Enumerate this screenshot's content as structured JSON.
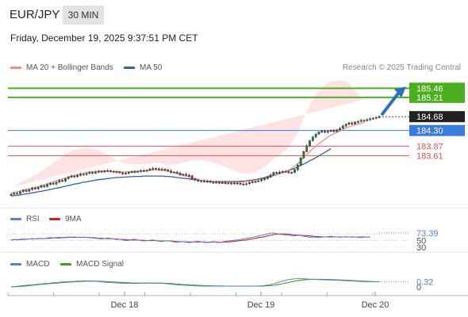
{
  "header": {
    "symbol": "EUR/JPY",
    "timeframe": "30 MIN",
    "timestamp": "Friday, December 19, 2025 9:37:51 PM CET"
  },
  "legend": {
    "ma20_label": "MA 20 + Bollinger Bands",
    "ma50_label": "MA 50",
    "credit": "Research © 2025 Trading Central"
  },
  "colors": {
    "up": "#2e7d32",
    "down": "#c62828",
    "ma20": "#f48a8a",
    "ma50": "#3a5fa0",
    "band": "#fcd9d9",
    "resistance": "#4caf1f",
    "pivot": "#3b7be0",
    "support": "#e05050",
    "arrow": "#2f6fb8",
    "rsi": "#5b7fd4",
    "rsi_ma": "#d32020",
    "macd": "#5b7fd4",
    "macd_signal": "#4a9e1a"
  },
  "chart_data": [
    {
      "type": "candlestick",
      "x_ticks": [
        "Dec 18",
        "Dec 19",
        "Dec 20"
      ],
      "ylim": [
        182.4,
        185.75
      ],
      "levels": [
        {
          "value": "185.46",
          "kind": "resistance"
        },
        {
          "value": "185.21",
          "kind": "resistance"
        },
        {
          "value": "184.68",
          "kind": "last"
        },
        {
          "value": "184.30",
          "kind": "pivot"
        },
        {
          "value": "183.87",
          "kind": "support"
        },
        {
          "value": "183.61",
          "kind": "support"
        }
      ],
      "close": [
        182.55,
        182.58,
        182.57,
        182.62,
        182.66,
        182.63,
        182.68,
        182.72,
        182.7,
        182.74,
        182.78,
        182.76,
        182.82,
        182.85,
        182.83,
        182.88,
        182.93,
        182.91,
        182.98,
        183.02,
        183.05,
        183.03,
        183.07,
        183.1,
        183.09,
        183.12,
        183.15,
        183.13,
        183.16,
        183.18,
        183.17,
        183.19,
        183.2,
        183.18,
        183.16,
        183.17,
        183.14,
        183.11,
        183.13,
        183.15,
        183.17,
        183.16,
        183.18,
        183.2,
        183.19,
        183.21,
        183.24,
        183.26,
        183.25,
        183.23,
        183.24,
        183.22,
        183.19,
        183.15,
        183.16,
        183.13,
        183.08,
        183.1,
        183.07,
        183.06,
        182.98,
        182.94,
        182.91,
        182.92,
        182.89,
        182.91,
        182.88,
        182.87,
        182.88,
        182.86,
        182.87,
        182.85,
        182.86,
        182.84,
        182.86,
        182.85,
        182.83,
        182.82,
        182.84,
        182.87,
        182.89,
        182.9,
        182.92,
        182.95,
        182.98,
        183.02,
        183.08,
        183.15,
        183.13,
        183.16,
        183.18,
        183.17,
        183.14,
        183.15,
        183.22,
        183.35,
        183.55,
        183.72,
        183.88,
        184.02,
        184.12,
        184.2,
        184.26,
        184.28,
        184.25,
        184.28,
        184.3,
        184.27,
        184.32,
        184.36,
        184.42,
        184.47,
        184.51,
        184.48,
        184.53,
        184.55,
        184.58,
        184.57,
        184.6,
        184.62,
        184.64,
        184.66,
        184.68
      ],
      "ma20": [
        182.58,
        182.6,
        182.62,
        182.64,
        182.66,
        182.68,
        182.7,
        182.72,
        182.74,
        182.76,
        182.79,
        182.81,
        182.84,
        182.86,
        182.89,
        182.92,
        182.94,
        182.97,
        183.0,
        183.02,
        183.05,
        183.07,
        183.09,
        183.11,
        183.13,
        183.15,
        183.16,
        183.17,
        183.18,
        183.18,
        183.19,
        183.19,
        183.18,
        183.18,
        183.17,
        183.17,
        183.16,
        183.16,
        183.16,
        183.17,
        183.17,
        183.18,
        183.18,
        183.19,
        183.19,
        183.2,
        183.2,
        183.21,
        183.21,
        183.21,
        183.2,
        183.19,
        183.18,
        183.16,
        183.14,
        183.12,
        183.1,
        183.07,
        183.05,
        183.02,
        182.99,
        182.97,
        182.95,
        182.93,
        182.92,
        182.91,
        182.9,
        182.89,
        182.89,
        182.88,
        182.88,
        182.88,
        182.88,
        182.88,
        182.88,
        182.88,
        182.88,
        182.89,
        182.9,
        182.91,
        182.92,
        182.93,
        182.95,
        182.96,
        182.98,
        183.0,
        183.03,
        183.06,
        183.08,
        183.11,
        183.14,
        183.17,
        183.21,
        183.26,
        183.32,
        183.39,
        183.47,
        183.56,
        183.64,
        183.72,
        183.8,
        183.87,
        183.94,
        184.0,
        184.06,
        184.12,
        184.17,
        184.21,
        184.25,
        184.29,
        184.33,
        184.37,
        184.4,
        184.43,
        184.46,
        184.48,
        184.5,
        184.52
      ],
      "ma50": [
        182.5,
        182.51,
        182.52,
        182.53,
        182.55,
        182.56,
        182.57,
        182.59,
        182.6,
        182.62,
        182.63,
        182.65,
        182.66,
        182.68,
        182.7,
        182.72,
        182.73,
        182.75,
        182.77,
        182.79,
        182.81,
        182.83,
        182.84,
        182.86,
        182.88,
        182.89,
        182.91,
        182.92,
        182.94,
        182.95,
        182.96,
        182.97,
        182.98,
        182.99,
        183.0,
        183.01,
        183.01,
        183.02,
        183.02,
        183.03,
        183.03,
        183.04,
        183.04,
        183.04,
        183.05,
        183.05,
        183.05,
        183.05,
        183.05,
        183.05,
        183.05,
        183.04,
        183.04,
        183.03,
        183.02,
        183.01,
        183.0,
        182.99,
        182.98,
        182.97,
        182.96,
        182.95,
        182.94,
        182.93,
        182.92,
        182.91,
        182.91,
        182.9,
        182.9,
        182.9,
        182.9,
        182.9,
        182.9,
        182.9,
        182.9,
        182.9,
        182.91,
        182.91,
        182.92,
        182.93,
        182.94,
        182.95,
        182.97,
        182.99,
        183.01,
        183.03,
        183.05,
        183.07,
        183.09,
        183.12,
        183.14,
        183.17,
        183.2,
        183.23,
        183.26,
        183.3,
        183.34,
        183.38,
        183.42,
        183.47,
        183.51,
        183.55,
        183.6,
        183.65,
        183.7,
        183.75,
        183.8
      ]
    },
    {
      "type": "line",
      "legend": [
        "RSI",
        "9MA"
      ],
      "ylim": [
        30,
        80
      ],
      "ticks": [
        "73.39",
        "50",
        "30"
      ],
      "rsi": [
        52,
        53,
        52,
        54,
        55,
        54,
        55,
        56,
        55,
        56,
        57,
        56,
        58,
        59,
        58,
        59,
        60,
        59,
        60,
        61,
        60,
        61,
        60,
        59,
        60,
        60,
        59,
        58,
        57,
        56,
        55,
        56,
        58,
        57,
        55,
        53,
        54,
        52,
        50,
        51,
        53,
        54,
        52,
        50,
        49,
        50,
        51,
        52,
        50,
        48,
        47,
        49,
        50,
        48,
        46,
        45,
        46,
        47,
        45,
        44,
        45,
        47,
        48,
        46,
        45,
        44,
        46,
        47,
        45,
        44,
        46,
        48,
        49,
        50,
        51,
        52,
        53,
        55,
        57,
        58,
        60,
        62,
        64,
        66,
        68,
        70,
        72,
        73,
        71,
        69,
        68,
        67,
        66,
        65,
        64,
        66,
        65,
        63,
        62,
        60,
        61,
        60,
        59,
        60,
        61,
        62,
        63,
        62,
        61,
        60,
        61,
        62,
        61,
        60,
        61,
        60,
        59,
        60,
        61,
        60
      ],
      "rsi_ma": [
        52,
        53,
        53,
        53,
        54,
        54,
        55,
        55,
        55,
        56,
        56,
        56,
        57,
        57,
        58,
        58,
        58,
        59,
        59,
        60,
        60,
        60,
        60,
        60,
        60,
        60,
        59,
        59,
        58,
        57,
        57,
        56,
        56,
        56,
        55,
        55,
        54,
        53,
        53,
        52,
        52,
        52,
        52,
        51,
        51,
        50,
        50,
        50,
        50,
        49,
        49,
        49,
        49,
        49,
        48,
        47,
        47,
        47,
        46,
        46,
        46,
        46,
        46,
        46,
        46,
        45,
        45,
        46,
        46,
        45,
        45,
        46,
        46,
        47,
        48,
        49,
        50,
        51,
        52,
        54,
        55,
        57,
        59,
        60,
        62,
        64,
        66,
        68,
        69,
        70,
        70,
        70,
        69,
        68,
        67,
        67,
        66,
        65,
        65,
        64,
        63,
        62,
        62,
        61,
        61,
        61,
        61,
        61,
        61,
        61,
        61,
        61,
        61,
        61,
        61,
        61,
        61,
        61,
        61,
        61
      ]
    },
    {
      "type": "line",
      "legend": [
        "MACD",
        "MACD Signal"
      ],
      "ylim": [
        -0.1,
        0.75
      ],
      "ticks": [
        "0.32",
        "0"
      ],
      "macd": [
        0.0,
        0.02,
        0.04,
        0.06,
        0.08,
        0.1,
        0.12,
        0.13,
        0.15,
        0.17,
        0.19,
        0.21,
        0.22,
        0.24,
        0.26,
        0.28,
        0.29,
        0.31,
        0.32,
        0.33,
        0.34,
        0.35,
        0.36,
        0.37,
        0.38,
        0.38,
        0.38,
        0.37,
        0.36,
        0.34,
        0.32,
        0.3,
        0.28,
        0.27,
        0.26,
        0.25,
        0.24,
        0.23,
        0.22,
        0.22,
        0.22,
        0.22,
        0.22,
        0.23,
        0.23,
        0.24,
        0.24,
        0.24,
        0.24,
        0.23,
        0.22,
        0.21,
        0.19,
        0.17,
        0.15,
        0.13,
        0.12,
        0.11,
        0.1,
        0.09,
        0.08,
        0.07,
        0.06,
        0.05,
        0.05,
        0.05,
        0.05,
        0.05,
        0.05,
        0.05,
        0.05,
        0.05,
        0.05,
        0.05,
        0.05,
        0.05,
        0.05,
        0.05,
        0.05,
        0.05,
        0.05,
        0.05,
        0.06,
        0.07,
        0.09,
        0.11,
        0.14,
        0.19,
        0.25,
        0.31,
        0.37,
        0.42,
        0.46,
        0.49,
        0.51,
        0.52,
        0.52,
        0.51,
        0.5,
        0.49,
        0.48,
        0.47,
        0.46,
        0.45,
        0.45,
        0.44,
        0.44,
        0.43,
        0.42,
        0.41,
        0.4,
        0.39,
        0.38,
        0.37,
        0.36,
        0.35,
        0.34,
        0.33,
        0.32,
        0.32,
        0.32,
        0.32
      ],
      "signal": [
        0.0,
        0.01,
        0.02,
        0.03,
        0.04,
        0.06,
        0.08,
        0.1,
        0.12,
        0.14,
        0.16,
        0.17,
        0.19,
        0.21,
        0.22,
        0.24,
        0.25,
        0.27,
        0.28,
        0.3,
        0.31,
        0.32,
        0.33,
        0.34,
        0.35,
        0.36,
        0.36,
        0.36,
        0.36,
        0.36,
        0.35,
        0.34,
        0.33,
        0.32,
        0.31,
        0.3,
        0.29,
        0.28,
        0.27,
        0.26,
        0.25,
        0.25,
        0.24,
        0.24,
        0.24,
        0.24,
        0.24,
        0.24,
        0.24,
        0.24,
        0.24,
        0.23,
        0.22,
        0.21,
        0.2,
        0.18,
        0.17,
        0.15,
        0.14,
        0.13,
        0.12,
        0.11,
        0.1,
        0.09,
        0.08,
        0.07,
        0.07,
        0.06,
        0.06,
        0.06,
        0.06,
        0.05,
        0.05,
        0.05,
        0.05,
        0.05,
        0.05,
        0.05,
        0.05,
        0.05,
        0.05,
        0.05,
        0.05,
        0.05,
        0.06,
        0.07,
        0.08,
        0.1,
        0.13,
        0.16,
        0.2,
        0.24,
        0.28,
        0.32,
        0.36,
        0.39,
        0.42,
        0.44,
        0.46,
        0.47,
        0.48,
        0.48,
        0.48,
        0.48,
        0.47,
        0.47,
        0.46,
        0.46,
        0.45,
        0.44,
        0.43,
        0.42,
        0.41,
        0.4,
        0.39,
        0.38,
        0.37,
        0.36,
        0.35,
        0.34,
        0.33,
        0.33,
        0.32
      ]
    }
  ]
}
